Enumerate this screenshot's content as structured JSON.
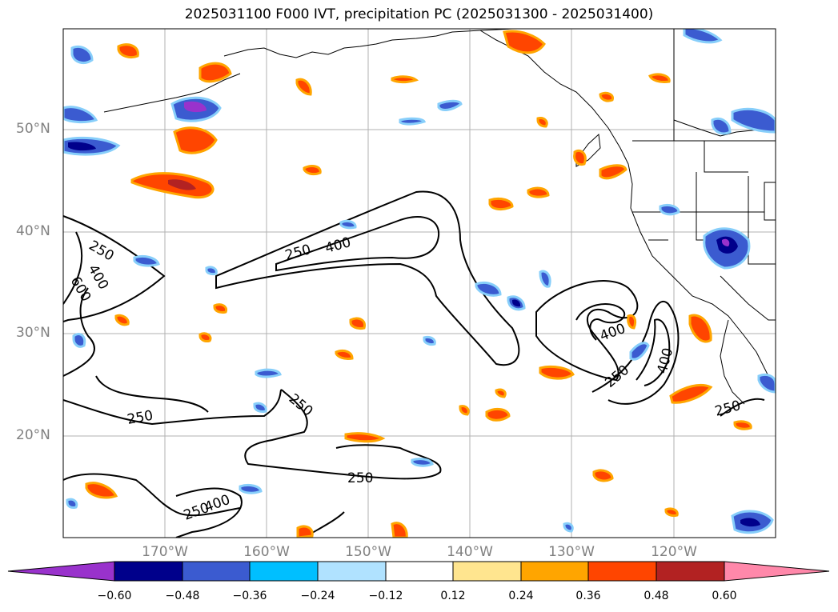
{
  "title": "2025031100 F000 IVT, precipitation PC (2025031300 - 2025031400)",
  "lat_labels": [
    "50°N",
    "40°N",
    "30°N",
    "20°N"
  ],
  "lon_labels": [
    "170°W",
    "160°W",
    "150°W",
    "140°W",
    "130°W",
    "120°W"
  ],
  "contour_labels": [
    "250",
    "400",
    "600",
    "250",
    "400",
    "250",
    "250",
    "250",
    "250",
    "400",
    "400",
    "250",
    "400",
    "250"
  ],
  "colorbar": {
    "ticks": [
      "−0.60",
      "−0.48",
      "−0.36",
      "−0.24",
      "−0.12",
      "0.12",
      "0.24",
      "0.36",
      "0.48",
      "0.60"
    ],
    "colors": [
      "#9932cc",
      "#00008b",
      "#3b5bd0",
      "#00bfff",
      "#b0e2ff",
      "#ffffff",
      "#ffe58f",
      "#ffa500",
      "#ff4500",
      "#b22222",
      "#ff88aa"
    ]
  }
}
